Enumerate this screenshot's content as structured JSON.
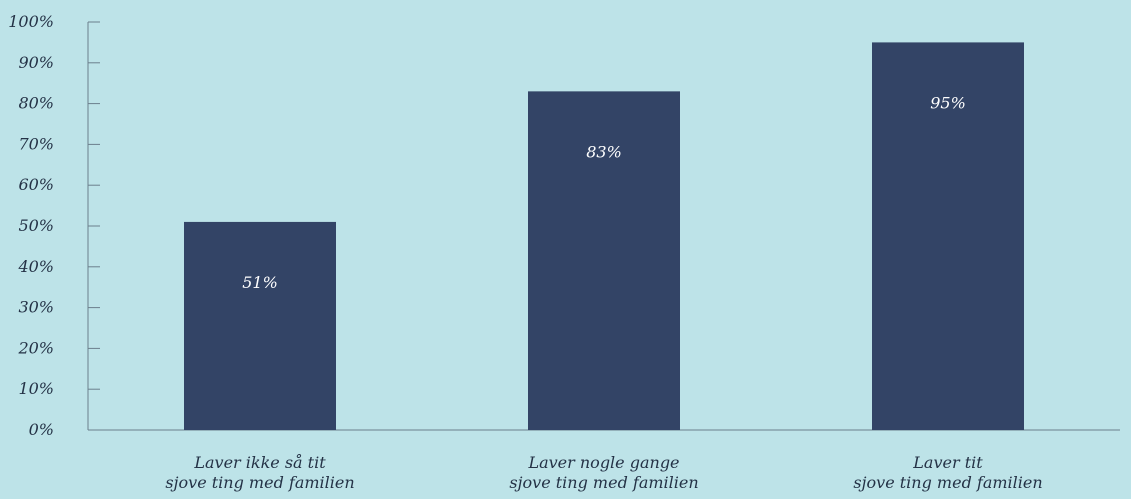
{
  "chart_data": {
    "type": "bar",
    "title": "",
    "xlabel": "",
    "ylabel": "",
    "categories": [
      [
        "Laver ikke så tit",
        "sjove ting med familien"
      ],
      [
        "Laver nogle gange",
        "sjove ting med familien"
      ],
      [
        "Laver tit",
        "sjove ting med familien"
      ]
    ],
    "values": [
      51,
      83,
      95
    ],
    "data_labels": [
      "51%",
      "83%",
      "95%"
    ],
    "ylim": [
      0,
      100
    ],
    "yticks": [
      0,
      10,
      20,
      30,
      40,
      50,
      60,
      70,
      80,
      90,
      100
    ],
    "ytick_labels": [
      "0%",
      "10%",
      "20%",
      "30%",
      "40%",
      "50%",
      "60%",
      "70%",
      "80%",
      "90%",
      "100%"
    ],
    "grid": false,
    "legend": "none",
    "colors": {
      "background": "#bde3e8",
      "bar": "#334466",
      "axis": "#6b7f8c",
      "text": "#243246",
      "data_label": "#ffffff"
    }
  }
}
